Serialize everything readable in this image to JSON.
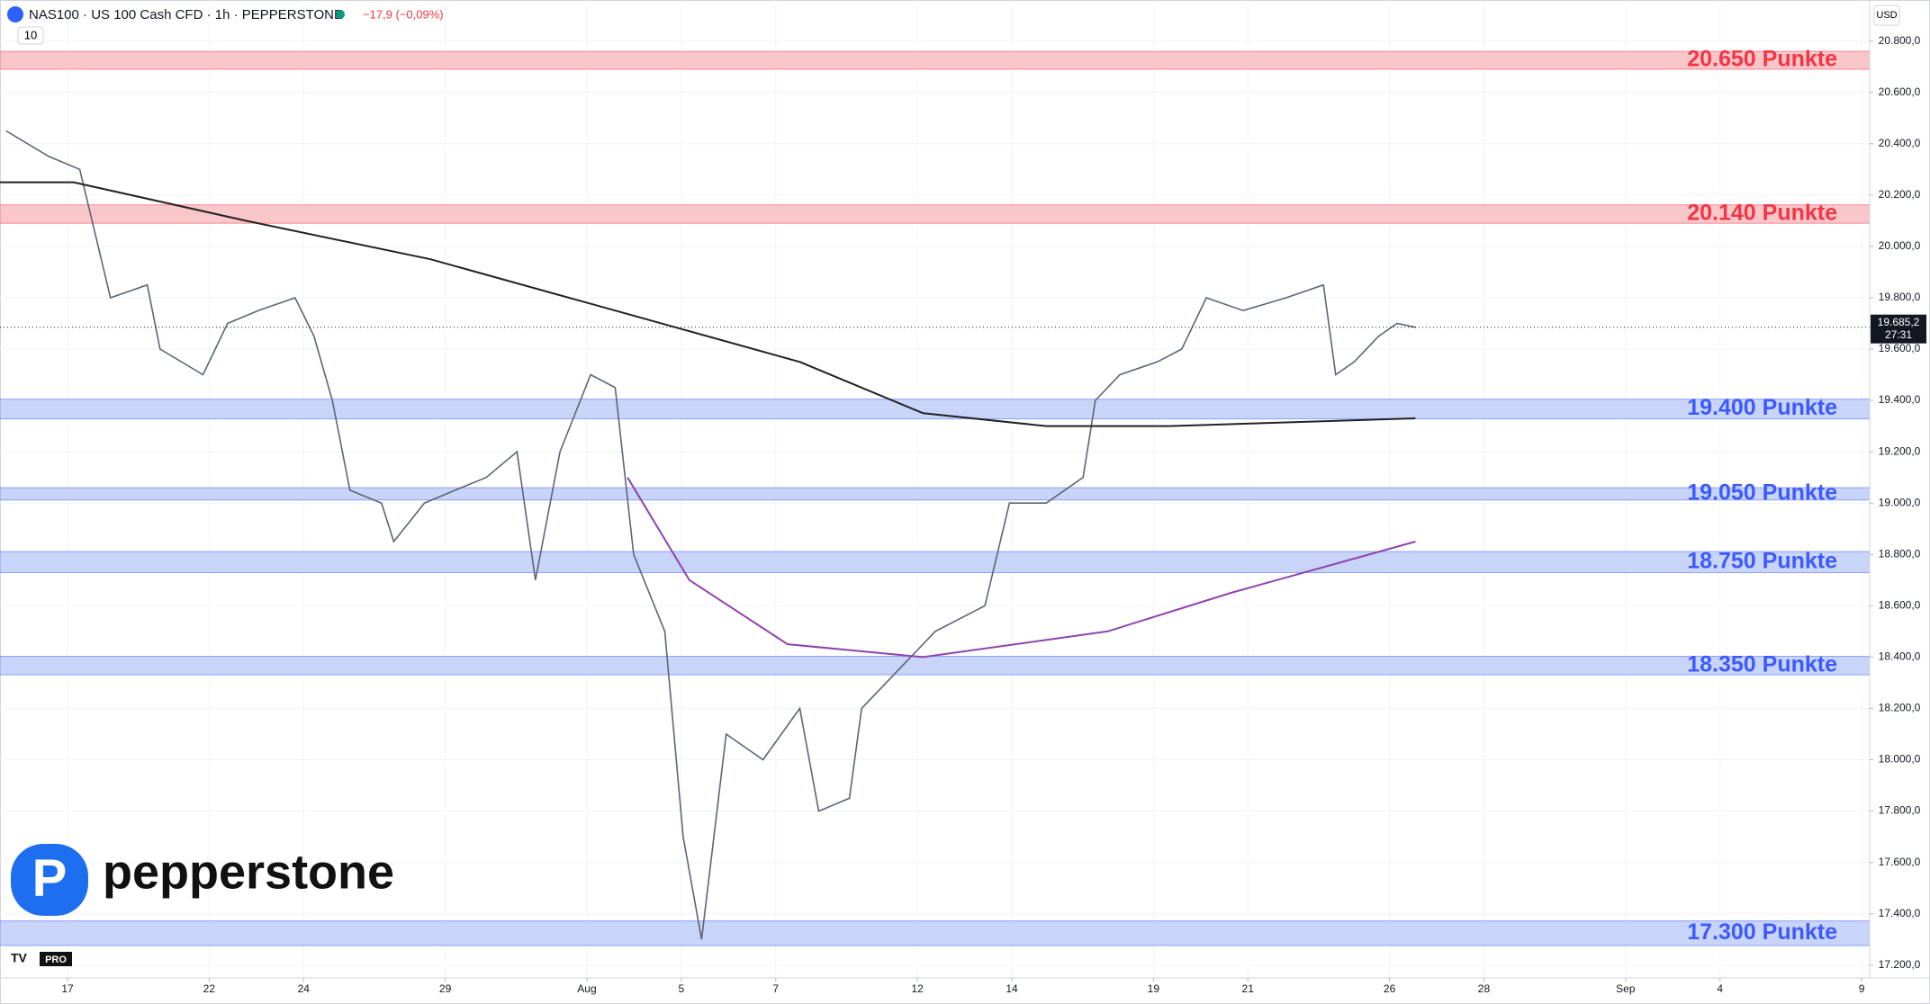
{
  "header": {
    "symbol": "NAS100 · US 100 Cash CFD · 1h · PEPPERSTONE",
    "change": "−17,9 (−0,09%)",
    "indicator": "10",
    "currency": "USD"
  },
  "logo": {
    "text": "pepperstone",
    "badge": "PRO"
  },
  "chart_data": {
    "type": "line",
    "xlim": [
      -1.43,
      38.17
    ],
    "xticks": [
      {
        "value": 0,
        "label": "17"
      },
      {
        "value": 3,
        "label": "22"
      },
      {
        "value": 5,
        "label": "24"
      },
      {
        "value": 8,
        "label": "29"
      },
      {
        "value": 11,
        "label": "Aug"
      },
      {
        "value": 13,
        "label": "5"
      },
      {
        "value": 15,
        "label": "7"
      },
      {
        "value": 18,
        "label": "12"
      },
      {
        "value": 20,
        "label": "14"
      },
      {
        "value": 23,
        "label": "19"
      },
      {
        "value": 25,
        "label": "21"
      },
      {
        "value": 28,
        "label": "26"
      },
      {
        "value": 30,
        "label": "28"
      },
      {
        "value": 33,
        "label": "Sep"
      },
      {
        "value": 35,
        "label": "4"
      },
      {
        "value": 38,
        "label": "9"
      }
    ],
    "ylim": [
      17150,
      20960
    ],
    "yticks": [
      {
        "value": 17200,
        "label": "17.200,0"
      },
      {
        "value": 17400,
        "label": "17.400,0"
      },
      {
        "value": 17600,
        "label": "17.600,0"
      },
      {
        "value": 17800,
        "label": "17.800,0"
      },
      {
        "value": 18000,
        "label": "18.000,0"
      },
      {
        "value": 18200,
        "label": "18.200,0"
      },
      {
        "value": 18400,
        "label": "18.400,0"
      },
      {
        "value": 18600,
        "label": "18.600,0"
      },
      {
        "value": 18800,
        "label": "18.800,0"
      },
      {
        "value": 19000,
        "label": "19.000,0"
      },
      {
        "value": 19200,
        "label": "19.200,0"
      },
      {
        "value": 19400,
        "label": "19.400,0"
      },
      {
        "value": 19600,
        "label": "19.600,0"
      },
      {
        "value": 19800,
        "label": "19.800,0"
      },
      {
        "value": 20000,
        "label": "20.000,0"
      },
      {
        "value": 20200,
        "label": "20.200,0"
      },
      {
        "value": 20400,
        "label": "20.400,0"
      },
      {
        "value": 20600,
        "label": "20.600,0"
      },
      {
        "value": 20800,
        "label": "20.800,0"
      }
    ],
    "zones": [
      {
        "label": "20.650 Punkte",
        "low": 20690,
        "high": 20760,
        "color": "#f23645",
        "fill": "#f9c6ca"
      },
      {
        "label": "20.140 Punkte",
        "low": 20090,
        "high": 20162,
        "color": "#f23645",
        "fill": "#f9c6ca"
      },
      {
        "label": "19.400 Punkte",
        "low": 19328,
        "high": 19405,
        "color": "#3d5afe",
        "fill": "#c8d4f8"
      },
      {
        "label": "19.050 Punkte",
        "low": 19012,
        "high": 19060,
        "color": "#3d5afe",
        "fill": "#c8d4f8"
      },
      {
        "label": "18.750 Punkte",
        "low": 18729,
        "high": 18811,
        "color": "#3d5afe",
        "fill": "#c8d4f8"
      },
      {
        "label": "18.350 Punkte",
        "low": 18331,
        "high": 18403,
        "color": "#3d5afe",
        "fill": "#c8d4f8"
      },
      {
        "label": "17.300 Punkte",
        "low": 17276,
        "high": 17372,
        "color": "#3d5afe",
        "fill": "#c8d4f8"
      }
    ],
    "series": [
      {
        "color": "#5d6474",
        "x": [
          -1.3,
          -0.39,
          0.26,
          0.65,
          0.91,
          1.69,
          1.96,
          2.87,
          3.39,
          4.04,
          4.82,
          5.22,
          5.61,
          5.98,
          6.65,
          6.91,
          7.56,
          8.21,
          8.87,
          9.52,
          9.91,
          10.43,
          11.08,
          11.6,
          11.99,
          12.65,
          13.04,
          13.43,
          13.95,
          14.73,
          15.51,
          15.91,
          16.56,
          16.82,
          17.6,
          18.38,
          19.43,
          19.95,
          20.73,
          21.51,
          21.77,
          22.29,
          23.08,
          23.6,
          24.12,
          24.9,
          25.81,
          26.6,
          26.86,
          27.25,
          27.77,
          28.16,
          28.55
        ],
        "values": [
          20450,
          20350,
          20300,
          20000,
          19800,
          19850,
          19600,
          19500,
          19700,
          19750,
          19800,
          19650,
          19400,
          19050,
          19000,
          18850,
          19000,
          19050,
          19100,
          19200,
          18700,
          19200,
          19500,
          19450,
          18800,
          18500,
          17700,
          17300,
          18100,
          18000,
          18200,
          17800,
          17850,
          18200,
          18350,
          18500,
          18600,
          19000,
          19000,
          19100,
          19400,
          19500,
          19550,
          19600,
          19800,
          19750,
          19800,
          19850,
          19500,
          19550,
          19650,
          19700,
          19685
        ]
      },
      {
        "color": "#222222",
        "x": [
          -1.43,
          0.13,
          3.78,
          7.69,
          11.6,
          15.51,
          18.12,
          20.73,
          23.34,
          28.55
        ],
        "values": [
          20250,
          20250,
          20100,
          19950,
          19750,
          19550,
          19350,
          19300,
          19300,
          19330
        ]
      },
      {
        "color": "#8e44ad",
        "x": [
          11.86,
          13.17,
          15.25,
          18.12,
          22.03,
          24.64,
          28.55
        ],
        "values": [
          19100,
          18700,
          18450,
          18400,
          18500,
          18650,
          18850
        ]
      }
    ],
    "last_price": {
      "value": 19685.2,
      "label": "19.685,2"
    },
    "countdown": "27:31"
  }
}
